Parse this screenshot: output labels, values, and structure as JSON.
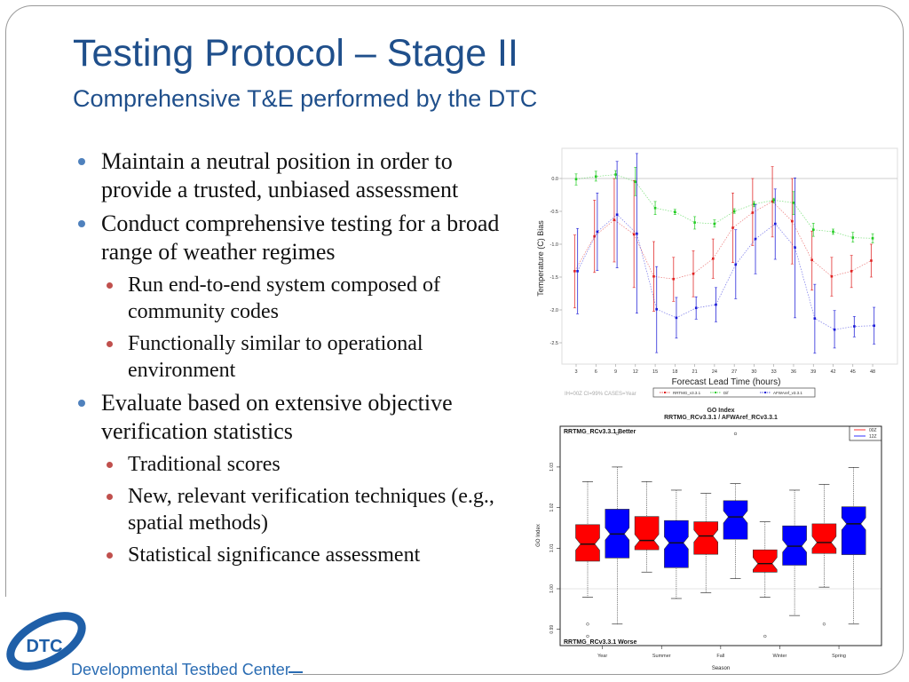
{
  "slide": {
    "title": "Testing Protocol – Stage II",
    "subtitle": "Comprehensive T&E performed by the DTC",
    "bullets": [
      {
        "text": "Maintain a neutral position in order to provide a trusted, unbiased assessment",
        "sub": []
      },
      {
        "text": "Conduct comprehensive testing for a broad range of weather regimes",
        "sub": [
          "Run end-to-end system composed of community codes",
          "Functionally similar to operational environment"
        ]
      },
      {
        "text": "Evaluate based on extensive objective verification statistics",
        "sub": [
          "Traditional scores",
          "New, relevant verification techniques (e.g., spatial methods)",
          "Statistical significance assessment"
        ]
      }
    ],
    "footer": {
      "logo_text": "DTC",
      "org_name": "Developmental Testbed Center"
    }
  },
  "colors": {
    "title": "#1f4f8b",
    "bullet": "#4f81bd",
    "sub_bullet": "#c0504d",
    "rrtmg": "#e02020",
    "dif": "#22cc22",
    "afwa": "#1a1ad8"
  },
  "chart_data": [
    {
      "type": "line",
      "xlabel": "Forecast Lead Time (hours)",
      "ylabel": "Temperature (C) Bias",
      "caption": "IH=00Z CI=99% CASES=Year",
      "x": [
        3,
        6,
        9,
        12,
        15,
        18,
        21,
        24,
        27,
        30,
        33,
        36,
        39,
        42,
        45,
        48
      ],
      "ylim": [
        -2.75,
        0.4
      ],
      "yticks": [
        0.0,
        -0.5,
        -1.0,
        -1.5,
        -2.0,
        -2.5
      ],
      "ytick_labels": [
        "0.0",
        "-0.5",
        "-1.0",
        "-1.5",
        "-2.0",
        "-2.5"
      ],
      "error_bars": "CI 99%",
      "legend_position": "bottom",
      "series": [
        {
          "name": "RRTMG_v3.3.1",
          "color": "#e02020",
          "values": [
            -1.41,
            -0.88,
            -0.63,
            -0.85,
            -1.49,
            -1.53,
            -1.45,
            -1.22,
            -0.75,
            -0.52,
            -0.35,
            -0.65,
            -1.24,
            -1.49,
            -1.41,
            -1.25
          ],
          "lower": [
            -1.97,
            -1.43,
            -1.27,
            -1.66,
            -2.02,
            -1.87,
            -1.8,
            -1.52,
            -1.28,
            -1.02,
            -0.89,
            -1.3,
            -1.7,
            -1.79,
            -1.66,
            -1.5
          ],
          "upper": [
            -0.86,
            -0.33,
            0.0,
            -0.03,
            -0.96,
            -1.2,
            -1.1,
            -0.92,
            -0.22,
            0.0,
            0.18,
            0.0,
            -0.8,
            -1.2,
            -1.17,
            -1.0
          ]
        },
        {
          "name": "Dif",
          "color": "#22cc22",
          "values": [
            -0.01,
            0.03,
            0.06,
            -0.05,
            -0.45,
            -0.51,
            -0.67,
            -0.69,
            -0.5,
            -0.39,
            -0.33,
            -0.37,
            -0.78,
            -0.81,
            -0.9,
            -0.91
          ],
          "lower": [
            -0.1,
            -0.04,
            0.0,
            -0.26,
            -0.55,
            -0.55,
            -0.77,
            -0.74,
            -0.53,
            -0.43,
            -0.37,
            -0.55,
            -0.88,
            -0.85,
            -0.97,
            -0.98
          ],
          "upper": [
            0.07,
            0.11,
            0.12,
            0.17,
            -0.35,
            -0.47,
            -0.58,
            -0.63,
            -0.46,
            -0.35,
            -0.3,
            -0.2,
            -0.68,
            -0.77,
            -0.82,
            -0.84
          ]
        },
        {
          "name": "AFWAref_v3.3.1",
          "color": "#1a1ad8",
          "values": [
            -1.41,
            -0.81,
            -0.55,
            -0.84,
            -1.99,
            -2.12,
            -1.97,
            -1.92,
            -1.31,
            -0.92,
            -0.69,
            -1.05,
            -2.13,
            -2.3,
            -2.25,
            -2.24
          ],
          "lower": [
            -2.06,
            -1.4,
            -1.36,
            -2.05,
            -2.65,
            -2.43,
            -2.14,
            -2.18,
            -1.83,
            -1.45,
            -1.23,
            -2.12,
            -2.66,
            -2.58,
            -2.41,
            -2.52
          ],
          "upper": [
            -0.76,
            -0.22,
            0.26,
            0.38,
            -1.34,
            -1.81,
            -1.8,
            -1.66,
            -0.78,
            -0.4,
            -0.16,
            0.01,
            -1.61,
            -2.01,
            -2.1,
            -1.96
          ]
        }
      ]
    },
    {
      "type": "box",
      "title": "GO Index",
      "subtitle": "RRTMG_RCv3.3.1 / AFWAref_RCv3.3.1",
      "xlabel": "Season",
      "ylabel": "GO Index",
      "categories": [
        "Year",
        "Summer",
        "Fall",
        "Winter",
        "Spring"
      ],
      "ylim": [
        0.986,
        1.04
      ],
      "yticks": [
        0.99,
        1.0,
        1.01,
        1.02,
        1.03
      ],
      "ytick_labels": [
        "0.99",
        "1.00",
        "1.01",
        "1.02",
        "1.03"
      ],
      "reference_line": 1.0,
      "annotations": {
        "top": "RRTMG_RCv3.3.1 Better",
        "bottom": "RRTMG_RCv3.3.1 Worse"
      },
      "legend_position": "top-right",
      "series": [
        {
          "name": "00Z",
          "color": "#ff0000",
          "boxes": [
            {
              "low": 0.9979,
              "q1": 1.0068,
              "median": 1.011,
              "q3": 1.0158,
              "high": 1.0264,
              "outliers": [
                0.9913,
                0.9883
              ]
            },
            {
              "low": 1.0041,
              "q1": 1.0096,
              "median": 1.0119,
              "q3": 1.0178,
              "high": 1.0264,
              "outliers": []
            },
            {
              "low": 0.999,
              "q1": 1.0085,
              "median": 1.013,
              "q3": 1.0165,
              "high": 1.0235,
              "outliers": []
            },
            {
              "low": 0.9979,
              "q1": 1.0041,
              "median": 1.0062,
              "q3": 1.0096,
              "high": 1.0165,
              "outliers": [
                0.9883
              ]
            },
            {
              "low": 1.0004,
              "q1": 1.0087,
              "median": 1.0114,
              "q3": 1.016,
              "high": 1.0257,
              "outliers": [
                0.9913
              ]
            }
          ]
        },
        {
          "name": "12Z",
          "color": "#0000ff",
          "boxes": [
            {
              "low": 0.9913,
              "q1": 1.0076,
              "median": 1.0135,
              "q3": 1.0196,
              "high": 1.03,
              "outliers": [
                1.0382
              ]
            },
            {
              "low": 0.9976,
              "q1": 1.0052,
              "median": 1.0113,
              "q3": 1.0168,
              "high": 1.0243,
              "outliers": []
            },
            {
              "low": 1.0025,
              "q1": 1.0122,
              "median": 1.0177,
              "q3": 1.0217,
              "high": 1.0259,
              "outliers": [
                1.0382
              ]
            },
            {
              "low": 0.9934,
              "q1": 1.0058,
              "median": 1.0105,
              "q3": 1.0155,
              "high": 1.0243,
              "outliers": []
            },
            {
              "low": 0.9913,
              "q1": 1.0084,
              "median": 1.016,
              "q3": 1.0202,
              "high": 1.0299,
              "outliers": []
            }
          ]
        }
      ]
    }
  ]
}
